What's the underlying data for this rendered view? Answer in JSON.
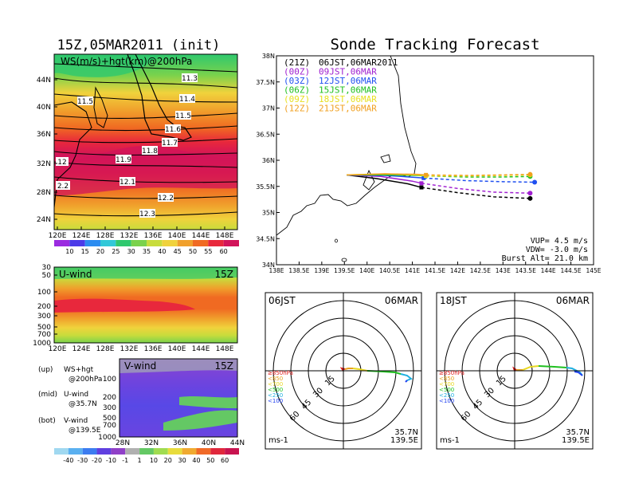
{
  "colors": {
    "ws": [
      "#9b2be0",
      "#4c3be8",
      "#2b8cf0",
      "#31c8d8",
      "#2fc86e",
      "#7ad24c",
      "#c8dc3c",
      "#f0d23c",
      "#f0a02c",
      "#f06a22",
      "#e8283c",
      "#d2145a"
    ],
    "vwind": [
      "#a0d8f0",
      "#5ab0f0",
      "#3c7cf0",
      "#6040e0",
      "#9040c8",
      "#b0b0b0",
      "#64c864",
      "#a0dc50",
      "#e8dc3c",
      "#f0aa30",
      "#f06a28",
      "#e0283c",
      "#c81450"
    ],
    "traj": [
      "#000000",
      "#a020d0",
      "#2050f0",
      "#20c020",
      "#e8e020",
      "#f0a020"
    ],
    "pcolor": [
      "#e02020",
      "#e8a020",
      "#e8d820",
      "#20c020",
      "#20b0e0",
      "#2040f0"
    ]
  },
  "header": {
    "left_title": "15Z,05MAR2011 (init)",
    "right_title": "Sonde Tracking Forecast"
  },
  "ws_map": {
    "label": "WS(m/s)+hgt(km)@200hPa",
    "lat_ticks": [
      "44N",
      "40N",
      "36N",
      "32N",
      "28N",
      "24N"
    ],
    "lon_ticks": [
      "120E",
      "124E",
      "128E",
      "132E",
      "136E",
      "140E",
      "144E",
      "148E"
    ],
    "contour_labels": [
      "11.3",
      "11.4",
      "11.5",
      "11.6",
      "11.7",
      "11.8",
      "11.9",
      "12",
      "12.1",
      "12.2",
      "12.3",
      "11.5",
      "2.2"
    ],
    "colorbar": [
      "10",
      "15",
      "20",
      "25",
      "30",
      "35",
      "40",
      "45",
      "50",
      "55",
      "60"
    ]
  },
  "uwind": {
    "label": "U-wind",
    "time": "15Z",
    "levels": [
      "30",
      "50",
      "100",
      "200",
      "300",
      "500",
      "700",
      "1000"
    ],
    "lon_ticks": [
      "120E",
      "124E",
      "128E",
      "132E",
      "136E",
      "140E",
      "144E",
      "148E"
    ]
  },
  "vwind": {
    "label": "V-wind",
    "time": "15Z",
    "levels": [
      "100",
      "200",
      "300",
      "500",
      "700",
      "1000"
    ],
    "lat_ticks": [
      "28N",
      "32N",
      "36N",
      "40N",
      "44N"
    ]
  },
  "vwind_colorbar": [
    "-40",
    "-30",
    "-20",
    "-10",
    "-1",
    "1",
    "10",
    "20",
    "30",
    "40",
    "50",
    "60"
  ],
  "notes": [
    {
      "k": "(up)",
      "v": "WS+hgt"
    },
    {
      "k": "",
      "v": "@200hPa"
    },
    {
      "k": "(mid)",
      "v": "U-wind"
    },
    {
      "k": "",
      "v": "@35.7N"
    },
    {
      "k": "(bot)",
      "v": "V-wind"
    },
    {
      "k": "",
      "v": "@139.5E"
    }
  ],
  "track": {
    "legend": [
      {
        "z": "(21Z)",
        "t": "06JST,06MAR2011"
      },
      {
        "z": "(00Z)",
        "t": "09JST,06MAR"
      },
      {
        "z": "(03Z)",
        "t": "12JST,06MAR"
      },
      {
        "z": "(06Z)",
        "t": "15JST,06MAR"
      },
      {
        "z": "(09Z)",
        "t": "18JST,06MAR"
      },
      {
        "z": "(12Z)",
        "t": "21JST,06MAR"
      }
    ],
    "lat_ticks": [
      "38N",
      "37.5N",
      "37N",
      "36.5N",
      "36N",
      "35.5N",
      "35N",
      "34.5N",
      "34N"
    ],
    "lon_ticks": [
      "138E",
      "138.5E",
      "139E",
      "139.5E",
      "140E",
      "140.5E",
      "141E",
      "141.5E",
      "142E",
      "142.5E",
      "143E",
      "143.5E",
      "144E",
      "144.5E",
      "145E"
    ],
    "params": [
      "VUP= 4.5 m/s",
      "VDW= -3.0 m/s",
      "Burst Alt= 21.0 km"
    ]
  },
  "hodo_left": {
    "time": "06JST",
    "date": "06MAR",
    "rings": [
      "15",
      "30",
      "45",
      "60"
    ],
    "levels": [
      "≥850hPa",
      "<850",
      "<700",
      "<500",
      "<250",
      "<100"
    ],
    "loc1": "35.7N",
    "loc2": "139.5E",
    "unit": "ms-1"
  },
  "hodo_right": {
    "time": "18JST",
    "date": "06MAR",
    "rings": [
      "15",
      "30",
      "45",
      "60"
    ],
    "levels": [
      "≥850hPa",
      "<850",
      "<700",
      "<500",
      "<250",
      "<100"
    ],
    "loc1": "35.7N",
    "loc2": "139.5E",
    "unit": "ms-1"
  },
  "chart_data": [
    {
      "type": "heatmap",
      "title": "WS(m/s)+hgt(km)@200hPa",
      "x_range": [
        120,
        150
      ],
      "y_range": [
        22,
        48
      ],
      "contour_levels_km": [
        11.3,
        11.4,
        11.5,
        11.6,
        11.7,
        11.8,
        11.9,
        12,
        12.1,
        12.2,
        12.3
      ],
      "colorbar": [
        10,
        15,
        20,
        25,
        30,
        35,
        40,
        45,
        50,
        55,
        60
      ],
      "jet_core_lat": 33,
      "jet_max_ms": 60
    },
    {
      "type": "heatmap",
      "title": "U-wind",
      "x_range": [
        120,
        150
      ],
      "levels_hpa": [
        30,
        50,
        100,
        200,
        300,
        500,
        700,
        1000
      ],
      "max_level_hpa": 250
    },
    {
      "type": "heatmap",
      "title": "V-wind",
      "x_range": [
        28,
        44
      ],
      "levels_hpa": [
        100,
        200,
        300,
        500,
        700,
        1000
      ]
    },
    {
      "type": "line",
      "title": "Sonde Tracking Forecast",
      "x_range": [
        138,
        145
      ],
      "y_range": [
        34,
        38
      ],
      "series": [
        {
          "name": "06JST,06MAR2011",
          "x": [
            139.55,
            140.2,
            140.9,
            141.2,
            142.0,
            142.8,
            143.6
          ],
          "y": [
            35.72,
            35.65,
            35.55,
            35.48,
            35.38,
            35.3,
            35.27
          ]
        },
        {
          "name": "09JST,06MAR",
          "x": [
            139.55,
            140.3,
            141.0,
            141.2,
            142.0,
            142.8,
            143.6
          ],
          "y": [
            35.72,
            35.69,
            35.6,
            35.56,
            35.46,
            35.39,
            35.37
          ]
        },
        {
          "name": "12JST,06MAR",
          "x": [
            139.55,
            140.4,
            141.1,
            141.25,
            142.2,
            143.0,
            143.7
          ],
          "y": [
            35.72,
            35.71,
            35.67,
            35.66,
            35.61,
            35.59,
            35.58
          ]
        },
        {
          "name": "15JST,06MAR",
          "x": [
            139.55,
            140.4,
            141.1,
            141.3,
            142.2,
            143.0,
            143.6
          ],
          "y": [
            35.72,
            35.72,
            35.71,
            35.7,
            35.68,
            35.68,
            35.69
          ]
        },
        {
          "name": "18JST,06MAR",
          "x": [
            139.55,
            140.4,
            141.1,
            141.3,
            142.2,
            143.0,
            143.6
          ],
          "y": [
            35.72,
            35.74,
            35.72,
            35.7,
            35.7,
            35.71,
            35.72
          ]
        },
        {
          "name": "21JST,06MAR",
          "x": [
            139.55,
            140.4,
            141.1,
            141.3,
            142.2,
            143.0,
            143.6
          ],
          "y": [
            35.72,
            35.74,
            35.73,
            35.72,
            35.71,
            35.72,
            35.73
          ]
        }
      ]
    }
  ]
}
